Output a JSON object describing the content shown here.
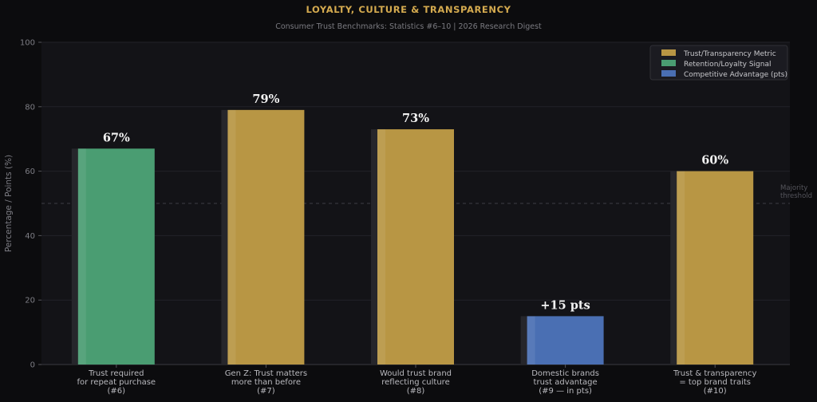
{
  "title": "LOYALTY, CULTURE & TRANSPARENCY",
  "subtitle": "Consumer Trust Benchmarks: Statistics #6–10 | 2026 Research Digest",
  "colors": {
    "background": "#0c0c0e",
    "plot_background": "#131317",
    "gold": "#b89644",
    "green": "#4a9d72",
    "blue": "#4a6fb3",
    "title": "#d4aa4f"
  },
  "chart_data": {
    "type": "bar",
    "title": "LOYALTY, CULTURE & TRANSPARENCY",
    "subtitle": "Consumer Trust Benchmarks: Statistics #6–10 | 2026 Research Digest",
    "ylabel": "Percentage / Points (%)",
    "xlabel": "",
    "ylim": [
      0,
      100
    ],
    "yticks": [
      0,
      20,
      40,
      60,
      80,
      100
    ],
    "grid": true,
    "legend_position": "top-right",
    "categories": [
      [
        "Trust required",
        "for repeat purchase",
        "(#6)"
      ],
      [
        "Gen Z: Trust matters",
        "more than before",
        "(#7)"
      ],
      [
        "Would trust brand",
        "reflecting culture",
        "(#8)"
      ],
      [
        "Domestic brands",
        "trust advantage",
        "(#9 — in pts)"
      ],
      [
        "Trust & transparency",
        "= top brand traits",
        "(#10)"
      ]
    ],
    "values": [
      67,
      79,
      73,
      15,
      60
    ],
    "value_labels": [
      "67%",
      "79%",
      "73%",
      "+15 pts",
      "60%"
    ],
    "bar_groups": [
      "green",
      "gold",
      "gold",
      "blue",
      "gold"
    ],
    "legend": [
      {
        "label": "Trust/Transparency Metric",
        "color": "gold"
      },
      {
        "label": "Retention/Loyalty Signal",
        "color": "green"
      },
      {
        "label": "Competitive Advantage (pts)",
        "color": "blue"
      }
    ],
    "reference_line": {
      "value": 50,
      "label": [
        "Majority",
        "threshold"
      ]
    }
  }
}
